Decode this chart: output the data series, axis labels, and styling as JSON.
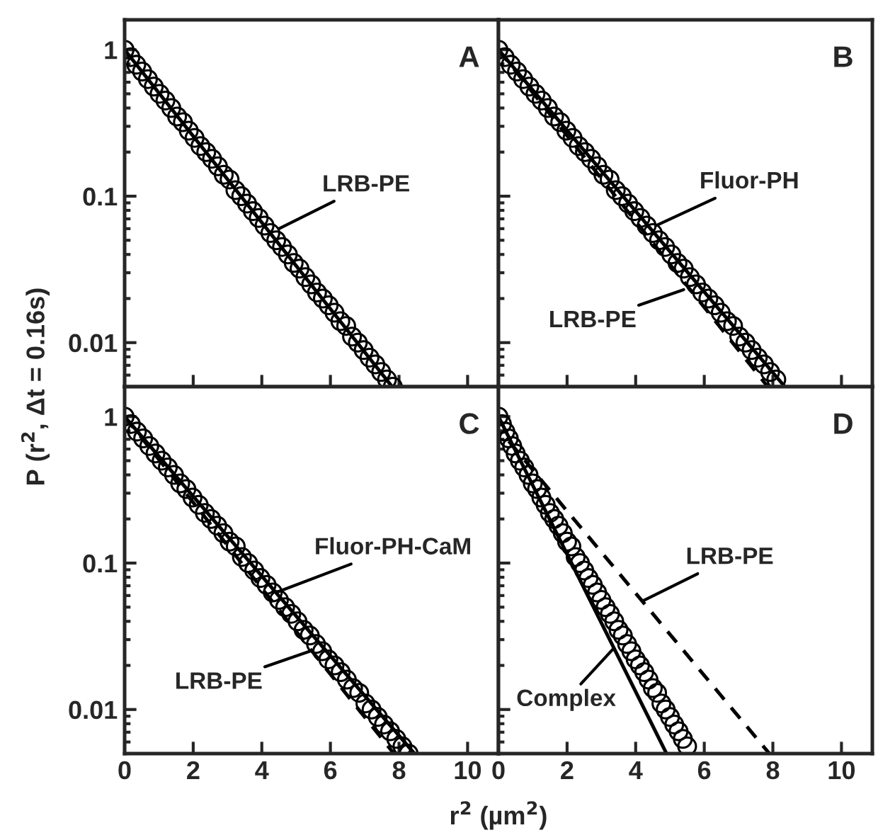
{
  "chart_data": [
    {
      "type": "scatter",
      "ylabel": "P (r$^{2}$, Δt = 0.16s)",
      "log": "y",
      "xlim": [
        0,
        10.9
      ],
      "xticks": [
        0,
        2,
        4,
        6,
        8,
        10
      ],
      "ylim": [
        0.005,
        1.6
      ],
      "yticks": [
        0.01,
        0.1,
        1
      ],
      "tick_labels": "y",
      "grid": false,
      "legend": false,
      "annotations": [
        "A",
        {
          "text": "LRB-PE",
          "x": 4.5,
          "y": 0.06
        }
      ],
      "series": [
        {
          "marker": "circle",
          "color": "#000000",
          "x": [
            0,
            0.17,
            0.34,
            0.51,
            0.68,
            0.85,
            1.02,
            1.19,
            1.36,
            1.53,
            1.7,
            1.87,
            2.04,
            2.21,
            2.38,
            2.55,
            2.72,
            2.89,
            3.06,
            3.23,
            3.4,
            3.57,
            3.74,
            3.91,
            4.08,
            4.25,
            4.42,
            4.59,
            4.76,
            4.93,
            5.1,
            5.27,
            5.44,
            5.61,
            5.78,
            5.95,
            6.12,
            6.29,
            6.46,
            6.63,
            6.8,
            6.97,
            7.14,
            7.31,
            7.48,
            7.65,
            7.82
          ],
          "values": [
            1,
            0.89,
            0.79,
            0.71,
            0.63,
            0.56,
            0.5,
            0.45,
            0.4,
            0.35,
            0.32,
            0.28,
            0.25,
            0.22,
            0.2,
            0.18,
            0.16,
            0.14,
            0.13,
            0.11,
            0.1,
            0.089,
            0.079,
            0.071,
            0.063,
            0.056,
            0.05,
            0.045,
            0.04,
            0.035,
            0.032,
            0.028,
            0.025,
            0.022,
            0.02,
            0.018,
            0.016,
            0.014,
            0.013,
            0.011,
            0.01,
            0.0089,
            0.0079,
            0.0071,
            0.0063,
            0.0056,
            0.005
          ]
        },
        {
          "type": "line",
          "line_style": "solid",
          "color": "#000000",
          "x": [
            0,
            7.8
          ],
          "values": [
            1,
            0.005
          ]
        }
      ]
    },
    {
      "type": "scatter",
      "log": "y",
      "xlim": [
        0,
        10.9
      ],
      "xticks": [
        0,
        2,
        4,
        6,
        8,
        10
      ],
      "ylim": [
        0.005,
        1.6
      ],
      "yticks": [
        0.01,
        0.1,
        1
      ],
      "tick_labels": false,
      "grid": false,
      "legend": false,
      "annotations": [
        "B",
        {
          "text": "Fluor-PH",
          "x": 4.6,
          "y": 0.063
        },
        {
          "text": "LRB-PE",
          "x": 5.4,
          "y": 0.023
        }
      ],
      "series": [
        {
          "marker": "circle",
          "color": "#000000",
          "x": [
            0,
            0.18,
            0.36,
            0.54,
            0.72,
            0.9,
            1.08,
            1.26,
            1.44,
            1.62,
            1.8,
            1.98,
            2.16,
            2.34,
            2.52,
            2.7,
            2.88,
            3.06,
            3.24,
            3.42,
            3.6,
            3.78,
            3.96,
            4.14,
            4.32,
            4.5,
            4.68,
            4.86,
            5.04,
            5.22,
            5.4,
            5.58,
            5.76,
            5.94,
            6.12,
            6.3,
            6.48,
            6.66,
            6.84,
            7.02,
            7.2,
            7.38,
            7.56,
            7.74,
            7.92,
            8.1
          ],
          "values": [
            1,
            0.89,
            0.79,
            0.71,
            0.63,
            0.56,
            0.5,
            0.45,
            0.4,
            0.35,
            0.32,
            0.28,
            0.25,
            0.22,
            0.2,
            0.18,
            0.16,
            0.14,
            0.13,
            0.11,
            0.1,
            0.089,
            0.079,
            0.071,
            0.063,
            0.056,
            0.05,
            0.045,
            0.04,
            0.035,
            0.032,
            0.028,
            0.025,
            0.022,
            0.02,
            0.018,
            0.016,
            0.014,
            0.013,
            0.011,
            0.01,
            0.0089,
            0.0079,
            0.0071,
            0.0063,
            0.0056
          ]
        },
        {
          "type": "line",
          "line_style": "solid",
          "color": "#000000",
          "x": [
            0,
            8.35
          ],
          "values": [
            1,
            0.005
          ]
        },
        {
          "type": "line",
          "line_style": "dashed",
          "color": "#000000",
          "x": [
            0,
            7.85
          ],
          "values": [
            1,
            0.005
          ]
        }
      ]
    },
    {
      "type": "scatter",
      "log": "y",
      "xlim": [
        0,
        10.9
      ],
      "xticks": [
        0,
        2,
        4,
        6,
        8,
        10
      ],
      "ylim": [
        0.005,
        1.6
      ],
      "yticks": [
        0.01,
        0.1,
        1
      ],
      "grid": false,
      "legend": false,
      "annotations": [
        "C",
        {
          "text": "Fluor-PH-CaM",
          "x": 4.5,
          "y": 0.064
        },
        {
          "text": "LRB-PE",
          "x": 5.4,
          "y": 0.025
        }
      ],
      "series": [
        {
          "marker": "circle",
          "color": "#000000",
          "x": [
            0,
            0.18,
            0.36,
            0.54,
            0.72,
            0.9,
            1.08,
            1.26,
            1.44,
            1.62,
            1.8,
            1.98,
            2.16,
            2.34,
            2.52,
            2.7,
            2.88,
            3.06,
            3.24,
            3.42,
            3.6,
            3.78,
            3.96,
            4.14,
            4.32,
            4.5,
            4.68,
            4.86,
            5.04,
            5.22,
            5.4,
            5.58,
            5.76,
            5.94,
            6.12,
            6.3,
            6.48,
            6.66,
            6.84,
            7.02,
            7.2,
            7.38,
            7.56,
            7.74,
            7.92,
            8.1,
            8.28
          ],
          "values": [
            1,
            0.89,
            0.79,
            0.71,
            0.63,
            0.56,
            0.5,
            0.45,
            0.4,
            0.35,
            0.32,
            0.28,
            0.25,
            0.22,
            0.2,
            0.18,
            0.16,
            0.14,
            0.13,
            0.11,
            0.1,
            0.089,
            0.079,
            0.071,
            0.063,
            0.056,
            0.05,
            0.045,
            0.04,
            0.035,
            0.032,
            0.028,
            0.025,
            0.022,
            0.02,
            0.018,
            0.016,
            0.014,
            0.013,
            0.011,
            0.01,
            0.0089,
            0.0079,
            0.0071,
            0.0063,
            0.0056,
            0.005
          ]
        },
        {
          "type": "line",
          "line_style": "solid",
          "color": "#000000",
          "x": [
            0,
            8.45
          ],
          "values": [
            1,
            0.005
          ]
        },
        {
          "type": "line",
          "line_style": "dashed",
          "color": "#000000",
          "x": [
            0,
            7.85
          ],
          "values": [
            1,
            0.005
          ]
        }
      ]
    },
    {
      "type": "scatter",
      "xlabel": "r$^{2}$ (µm$^{2}$)",
      "log": "y",
      "xlim": [
        0,
        10.9
      ],
      "xticks": [
        0,
        2,
        4,
        6,
        8,
        10
      ],
      "ylim": [
        0.005,
        1.6
      ],
      "yticks": [
        0.01,
        0.1,
        1
      ],
      "tick_labels": "x",
      "grid": false,
      "legend": false,
      "annotations": [
        "D",
        {
          "text": "LRB-PE",
          "x": 4.2,
          "y": 0.055
        },
        {
          "text": "Complex",
          "x": 3.35,
          "y": 0.026
        }
      ],
      "series": [
        {
          "marker": "circle",
          "color": "#000000",
          "x": [
            0,
            0.1,
            0.2,
            0.3,
            0.4,
            0.5,
            0.625,
            0.75,
            0.875,
            1,
            1.125,
            1.25,
            1.375,
            1.5,
            1.625,
            1.75,
            1.875,
            2,
            2.125,
            2.25,
            2.375,
            2.5,
            2.625,
            2.75,
            2.875,
            3,
            3.125,
            3.25,
            3.375,
            3.5,
            3.625,
            3.75,
            3.875,
            4,
            4.125,
            4.25,
            4.375,
            4.5,
            4.625,
            4.75,
            4.875,
            5,
            5.125,
            5.25,
            5.375,
            5.5
          ],
          "values": [
            1,
            0.89,
            0.79,
            0.71,
            0.63,
            0.56,
            0.5,
            0.45,
            0.4,
            0.35,
            0.32,
            0.28,
            0.25,
            0.22,
            0.2,
            0.18,
            0.16,
            0.14,
            0.13,
            0.11,
            0.1,
            0.089,
            0.079,
            0.071,
            0.063,
            0.056,
            0.05,
            0.045,
            0.04,
            0.035,
            0.032,
            0.028,
            0.025,
            0.022,
            0.02,
            0.018,
            0.016,
            0.014,
            0.013,
            0.011,
            0.01,
            0.0089,
            0.0079,
            0.0071,
            0.0063,
            0.0056
          ]
        },
        {
          "type": "line",
          "line_style": "solid",
          "color": "#000000",
          "x": [
            0,
            4.9
          ],
          "values": [
            1,
            0.005
          ]
        },
        {
          "type": "line",
          "line_style": "dashed",
          "color": "#000000",
          "x": [
            0.3,
            7.9
          ],
          "values": [
            0.68,
            0.005
          ]
        }
      ]
    }
  ]
}
